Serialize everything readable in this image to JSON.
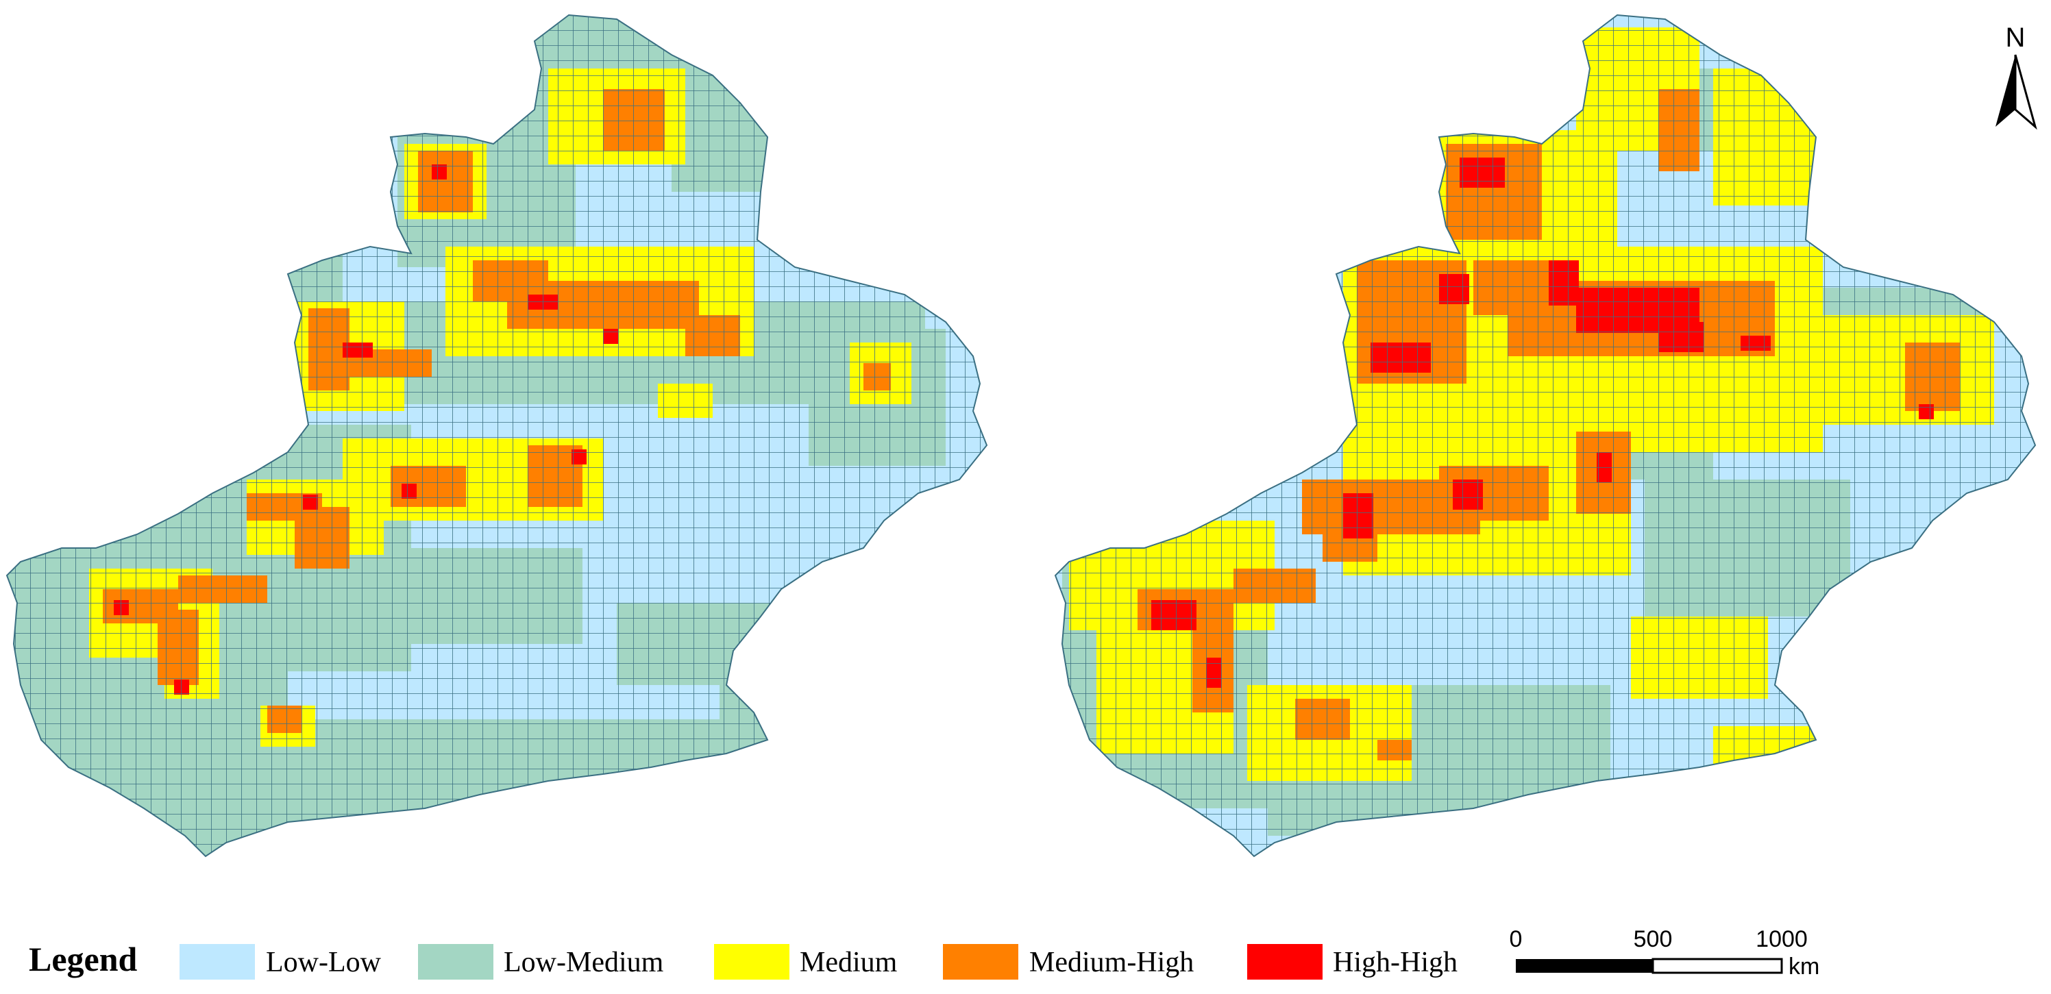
{
  "legend": {
    "title": "Legend",
    "classes": [
      {
        "label": "Low-Low",
        "color": "#bee8ff"
      },
      {
        "label": "Low-Medium",
        "color": "#a3d6c3"
      },
      {
        "label": "Medium",
        "color": "#ffff00"
      },
      {
        "label": "Medium-High",
        "color": "#ff8000"
      },
      {
        "label": "High-High",
        "color": "#ff0000"
      }
    ]
  },
  "scale_bar": {
    "ticks": [
      "0",
      "500",
      "1000"
    ],
    "unit": "km"
  },
  "north_arrow": {
    "label": "N",
    "icon": "north-arrow-icon"
  },
  "grid_line_color": "#3a6f82"
}
